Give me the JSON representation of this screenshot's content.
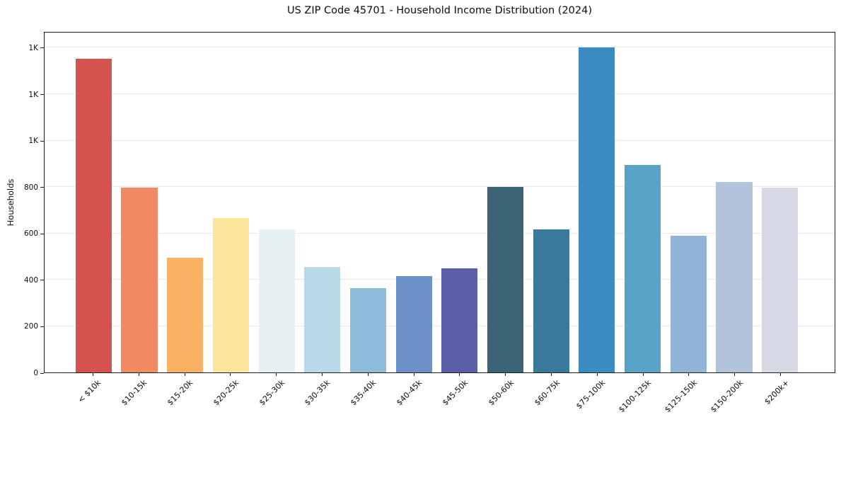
{
  "chart_data": {
    "type": "bar",
    "title": "US ZIP Code 45701 - Household Income Distribution (2024)",
    "xlabel": "",
    "ylabel": "Households",
    "categories": [
      "< $10k",
      "$10-15k",
      "$15-20k",
      "$20-25k",
      "$25-30k",
      "$30-35k",
      "$35-40k",
      "$40-45k",
      "$45-50k",
      "$50-60k",
      "$60-75k",
      "$75-100k",
      "$100-125k",
      "$125-150k",
      "$150-200k",
      "$200k+"
    ],
    "values": [
      1350,
      795,
      495,
      665,
      615,
      455,
      362,
      414,
      448,
      800,
      615,
      1400,
      895,
      588,
      822,
      795
    ],
    "bar_colors": [
      "#d5534e",
      "#f18a63",
      "#f9b164",
      "#fde59c",
      "#e7f1f3",
      "#b9d9e8",
      "#8ebcdc",
      "#6c91c8",
      "#5b5fa8",
      "#3a6375",
      "#38799c",
      "#3a8cc3",
      "#58a3c8",
      "#90b5d9",
      "#b2c3dc",
      "#d6d8e6"
    ],
    "ylim": [
      0,
      1470
    ],
    "yticks": [
      {
        "value": 0,
        "label": "0"
      },
      {
        "value": 200,
        "label": "200"
      },
      {
        "value": 400,
        "label": "400"
      },
      {
        "value": 600,
        "label": "600"
      },
      {
        "value": 800,
        "label": "800"
      },
      {
        "value": 1000,
        "label": "1K"
      },
      {
        "value": 1200,
        "label": "1K"
      },
      {
        "value": 1400,
        "label": "1K"
      }
    ],
    "x_tick_rotation_deg": 45,
    "grid": "horizontal",
    "legend": "none"
  },
  "colors": {
    "background": "#ffffff",
    "grid": "#e9e9f1",
    "spine": "#1c1c1c",
    "text": "#0d0d0d"
  }
}
